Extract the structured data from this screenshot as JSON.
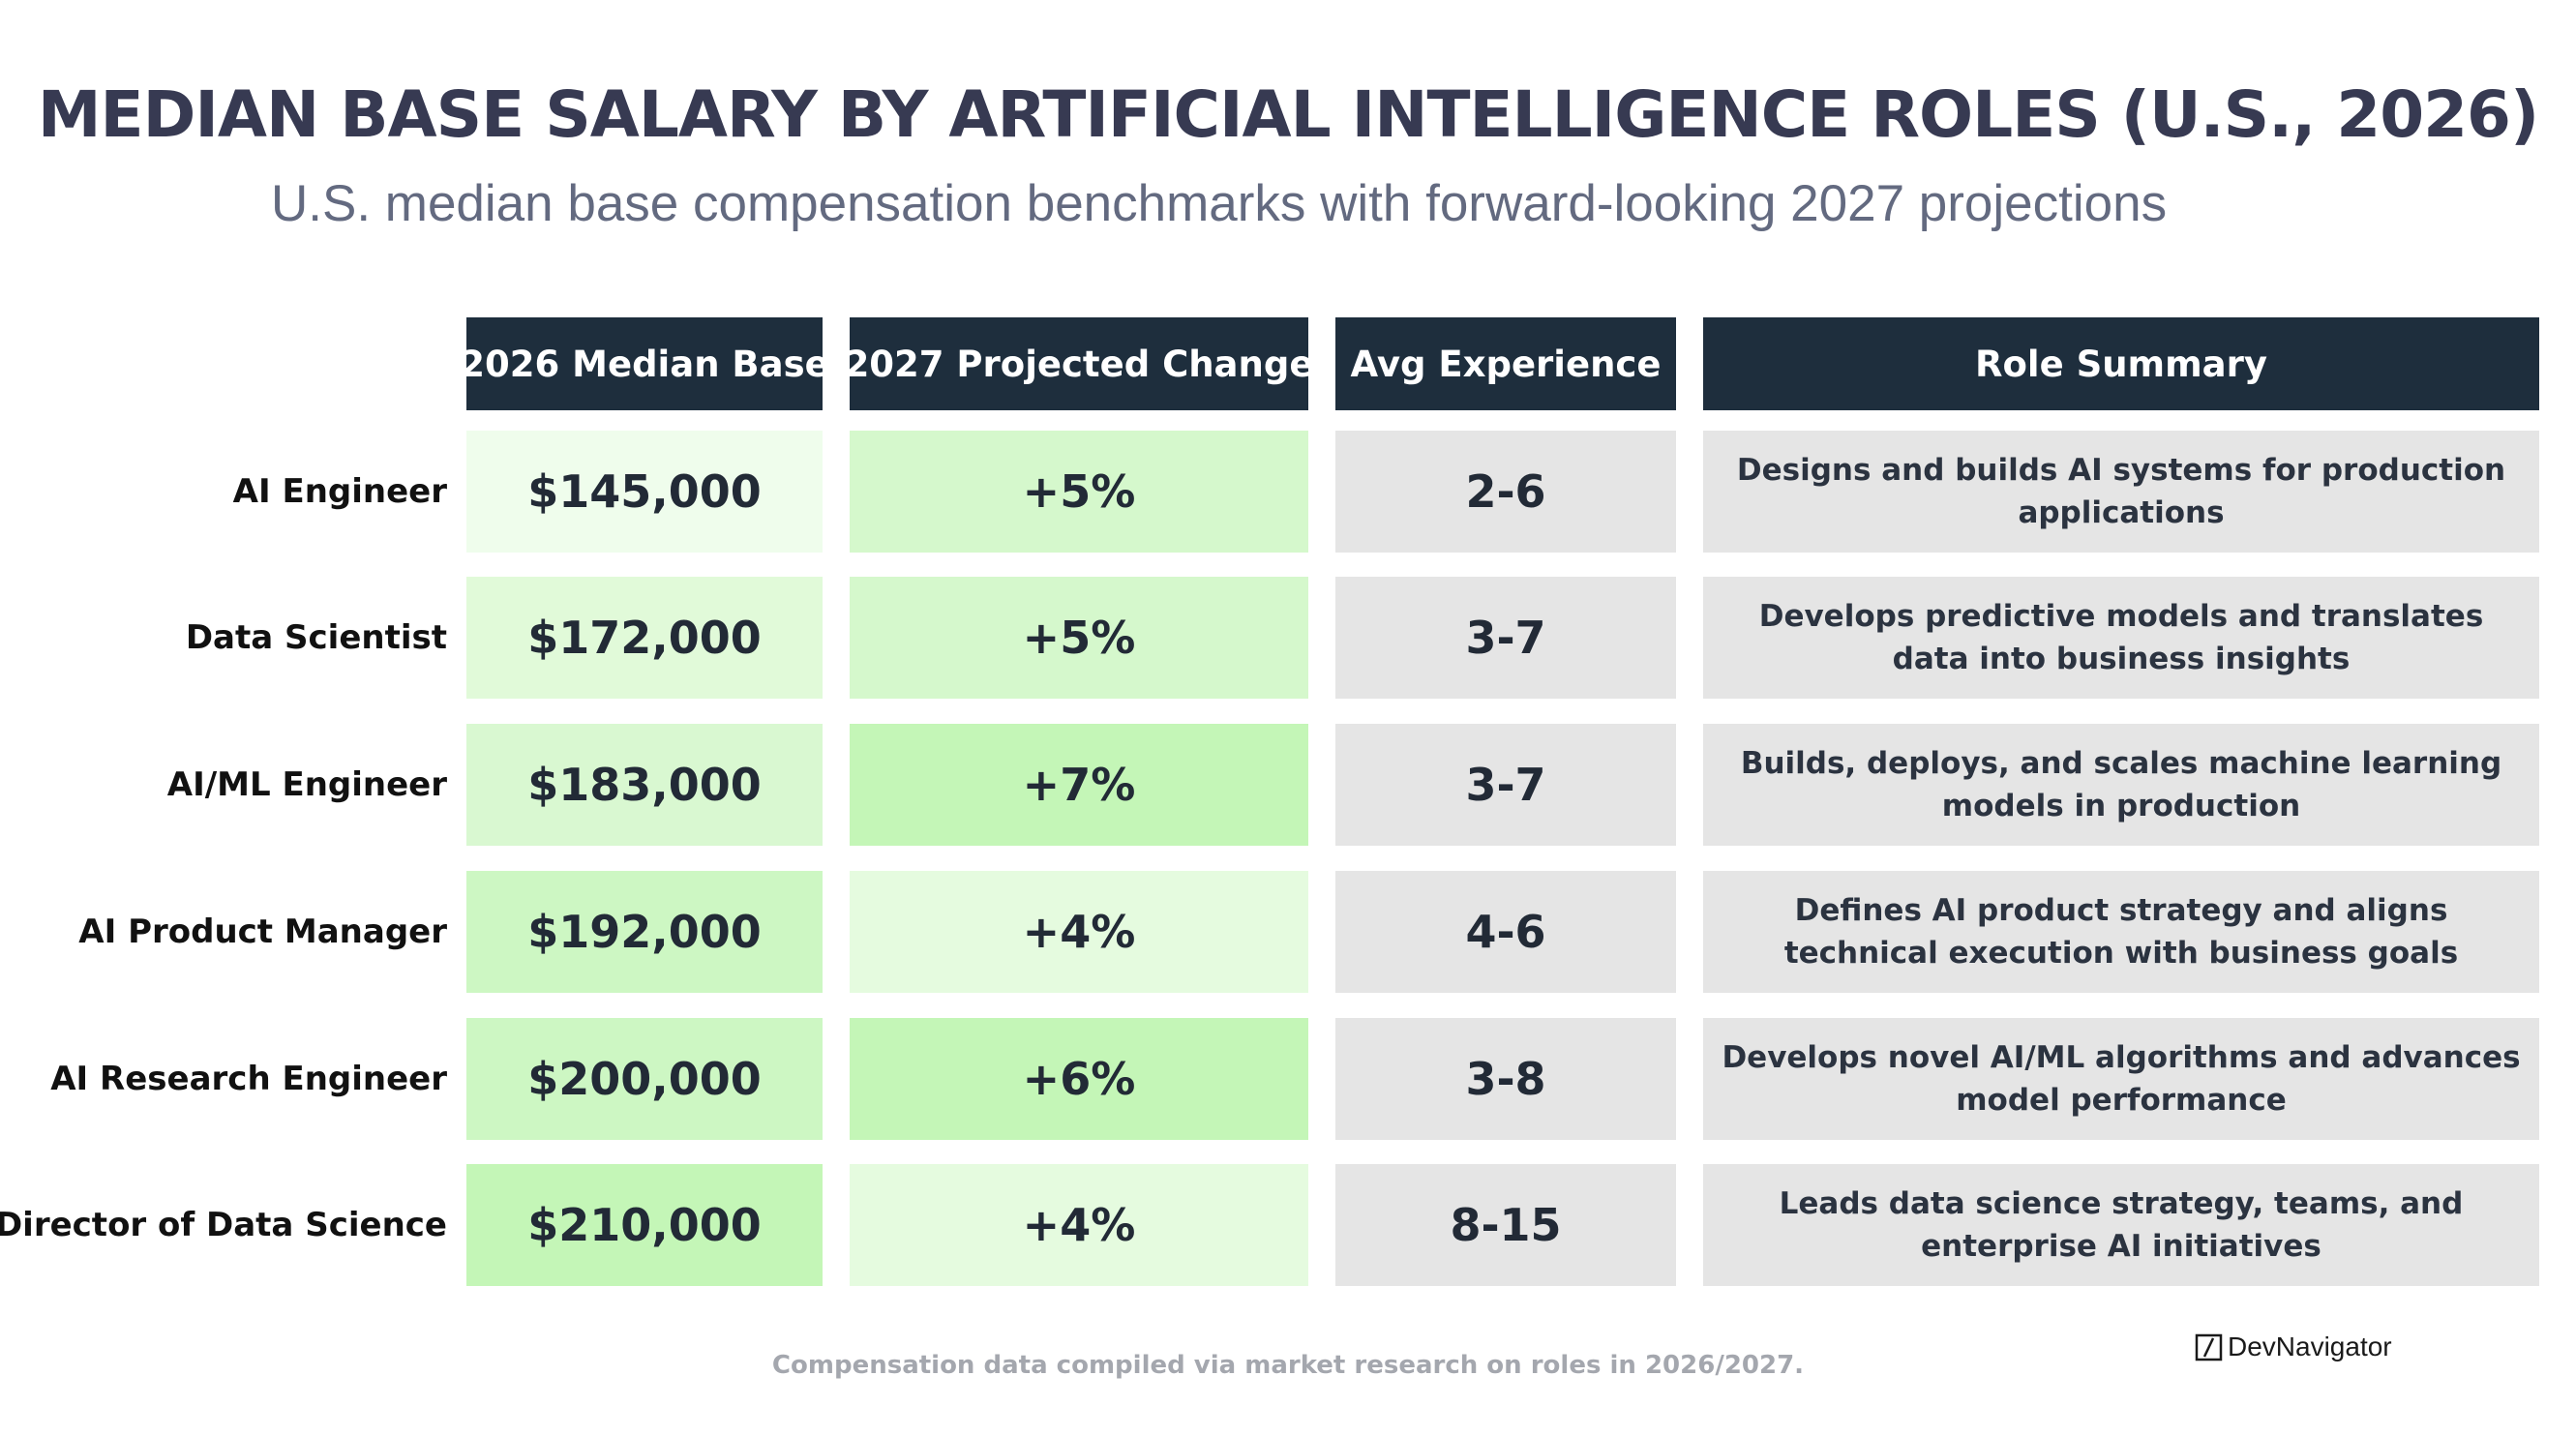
{
  "chart_data": {
    "type": "table",
    "title": "MEDIAN BASE SALARY BY ARTIFICIAL INTELLIGENCE ROLES (U.S., 2026)",
    "subtitle": "U.S. median base compensation benchmarks with forward-looking 2027 projections",
    "columns": [
      "2026 Median Base",
      "2027 Projected Change",
      "Avg Experience",
      "Role Summary"
    ],
    "rows": [
      {
        "role": "AI Engineer",
        "median_base": "$145,000",
        "median_base_value": 145000,
        "projected_change": "+5%",
        "projected_change_value": 5,
        "avg_experience": "2-6",
        "summary": "Designs and builds AI systems for production applications"
      },
      {
        "role": "Data Scientist",
        "median_base": "$172,000",
        "median_base_value": 172000,
        "projected_change": "+5%",
        "projected_change_value": 5,
        "avg_experience": "3-7",
        "summary": "Develops predictive models and translates data into business insights"
      },
      {
        "role": "AI/ML Engineer",
        "median_base": "$183,000",
        "median_base_value": 183000,
        "projected_change": "+7%",
        "projected_change_value": 7,
        "avg_experience": "3-7",
        "summary": "Builds, deploys, and scales machine learning models in production"
      },
      {
        "role": "AI Product Manager",
        "median_base": "$192,000",
        "median_base_value": 192000,
        "projected_change": "+4%",
        "projected_change_value": 4,
        "avg_experience": "4-6",
        "summary": "Defines AI product strategy and aligns technical execution with business goals"
      },
      {
        "role": "AI Research Engineer",
        "median_base": "$200,000",
        "median_base_value": 200000,
        "projected_change": "+6%",
        "projected_change_value": 6,
        "avg_experience": "3-8",
        "summary": "Develops novel AI/ML algorithms and advances model performance"
      },
      {
        "role": "Director of Data Science",
        "median_base": "$210,000",
        "median_base_value": 210000,
        "projected_change": "+4%",
        "projected_change_value": 4,
        "avg_experience": "8-15",
        "summary": "Leads data science strategy, teams, and enterprise AI initiatives"
      }
    ],
    "footnote": "Compensation data compiled via market research on roles in 2026/2027.",
    "brand": "DevNavigator",
    "colors": {
      "header_bg": "#1e2e3d",
      "header_text": "#ffffff",
      "neutral_cell": "#e5e5e5",
      "salary_scale": [
        "#effdec",
        "#e7fbe2",
        "#e1fad9",
        "#d9f8d1",
        "#cdf7c3",
        "#c4f6b7"
      ],
      "change_scale": {
        "4": "#e5fbdf",
        "5": "#d5f8cc",
        "6": "#c4f6b7",
        "7": "#c4f6b7"
      }
    }
  }
}
